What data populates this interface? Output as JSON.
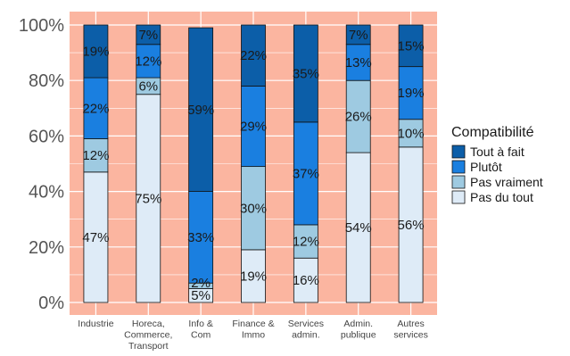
{
  "chart_data": {
    "type": "bar",
    "stacked": true,
    "categories": [
      [
        "Industrie"
      ],
      [
        "Horeca,",
        "Commerce,",
        "Transport"
      ],
      [
        "Info &",
        "Com"
      ],
      [
        "Finance &",
        "Immo"
      ],
      [
        "Services",
        "admin."
      ],
      [
        "Admin.",
        "publique"
      ],
      [
        "Autres",
        "services"
      ]
    ],
    "series": [
      {
        "name": "Pas du tout",
        "values": [
          47,
          75,
          5,
          19,
          16,
          54,
          56
        ],
        "labels": [
          "47%",
          "75%",
          "5%",
          "19%",
          "16%",
          "54%",
          "56%"
        ],
        "color": "#deebf7"
      },
      {
        "name": "Pas vraiment",
        "values": [
          12,
          6,
          2,
          30,
          12,
          26,
          10
        ],
        "labels": [
          "12%",
          "6%",
          "2%",
          "30%",
          "12%",
          "26%",
          "10%"
        ],
        "color": "#9ecae1"
      },
      {
        "name": "Plutôt",
        "values": [
          22,
          12,
          33,
          29,
          37,
          13,
          19
        ],
        "labels": [
          "22%",
          "12%",
          "33%",
          "29%",
          "37%",
          "13%",
          "19%"
        ],
        "color": "#1a7fe0"
      },
      {
        "name": "Tout à fait",
        "values": [
          19,
          7,
          59,
          22,
          35,
          7,
          15
        ],
        "labels": [
          "19%",
          "7%",
          "59%",
          "22%",
          "35%",
          "7%",
          "15%"
        ],
        "color": "#0c5ea8"
      }
    ],
    "ylim": [
      0,
      100
    ],
    "yticks": [
      0,
      20,
      40,
      60,
      80,
      100
    ],
    "ytick_labels": [
      "0%",
      "20%",
      "40%",
      "60%",
      "80%",
      "100%"
    ],
    "legend": {
      "title": "Compatibilité",
      "position": "right",
      "order": [
        "Tout à fait",
        "Plutôt",
        "Pas vraiment",
        "Pas du tout"
      ]
    },
    "grid": true,
    "panel_background": "#fbb5a0",
    "grid_color": "#ffffff"
  }
}
